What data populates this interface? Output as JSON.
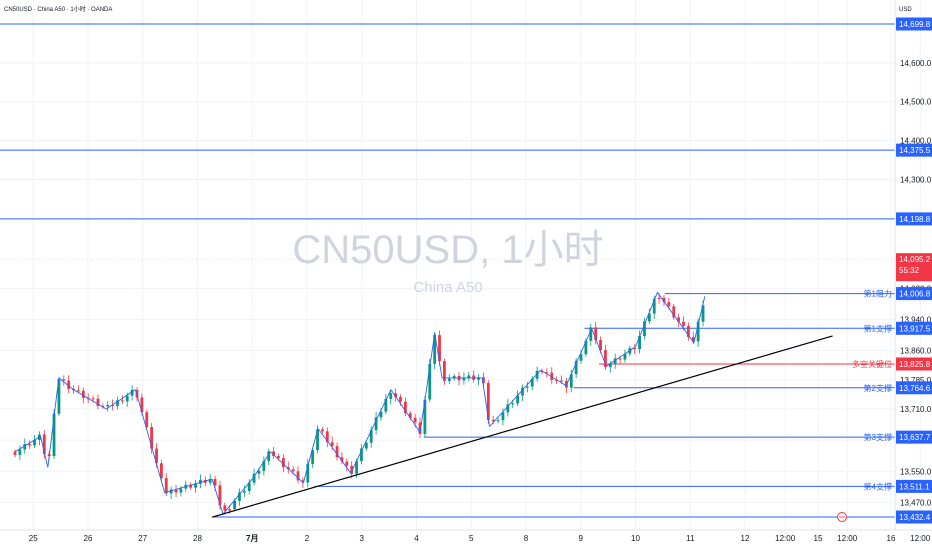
{
  "header": {
    "symbol_line": "CN50USD · China A50 · 1小时 · OANDA",
    "currency": "USD"
  },
  "watermark": {
    "title": "CN50USD, 1小时",
    "subtitle": "China A50"
  },
  "colors": {
    "up": "#089981",
    "down": "#f23645",
    "level": "#2962ff",
    "pivot": "#f23645",
    "trend": "#000000",
    "zigzag": "#2962ff",
    "grid": "#f0f3fa",
    "last_price_bg": "#f23645"
  },
  "chart_data": {
    "type": "candlestick",
    "title": "CN50USD, 1小时",
    "subtitle": "China A50",
    "ylim": [
      13420,
      14760
    ],
    "y_ticks": [
      {
        "value": 14600,
        "label": "14,600.0"
      },
      {
        "value": 14500,
        "label": "14,500.0"
      },
      {
        "value": 14400,
        "label": "14,400.0"
      },
      {
        "value": 14300,
        "label": "14,300.0"
      },
      {
        "value": 14020,
        "label": "14,020.0"
      },
      {
        "value": 13940,
        "label": "13,940.0"
      },
      {
        "value": 13860,
        "label": "13,860.0"
      },
      {
        "value": 13785,
        "label": "13,785.0"
      },
      {
        "value": 13710,
        "label": "13,710.0"
      },
      {
        "value": 13630,
        "label": "13,630.0"
      },
      {
        "value": 13550,
        "label": "13,550.0"
      },
      {
        "value": 13470,
        "label": "13,470.0"
      }
    ],
    "x_ticks": [
      {
        "t": 0.5,
        "label": "25",
        "bold": false
      },
      {
        "t": 2.0,
        "label": "26",
        "bold": false
      },
      {
        "t": 3.5,
        "label": "27",
        "bold": false
      },
      {
        "t": 5.0,
        "label": "28",
        "bold": false
      },
      {
        "t": 6.5,
        "label": "7月",
        "bold": true
      },
      {
        "t": 8.0,
        "label": "2",
        "bold": false
      },
      {
        "t": 9.5,
        "label": "3",
        "bold": false
      },
      {
        "t": 11.0,
        "label": "4",
        "bold": false
      },
      {
        "t": 12.5,
        "label": "5",
        "bold": false
      },
      {
        "t": 14.0,
        "label": "8",
        "bold": false
      },
      {
        "t": 15.5,
        "label": "9",
        "bold": false
      },
      {
        "t": 17.0,
        "label": "10",
        "bold": false
      },
      {
        "t": 18.5,
        "label": "11",
        "bold": false
      },
      {
        "t": 20.0,
        "label": "12",
        "bold": false
      },
      {
        "t": 21.1,
        "label": "12:00",
        "bold": false
      },
      {
        "t": 22.0,
        "label": "15",
        "bold": false
      },
      {
        "t": 22.8,
        "label": "12:00",
        "bold": false
      },
      {
        "t": 24.0,
        "label": "16",
        "bold": false
      },
      {
        "t": 24.8,
        "label": "12:00",
        "bold": false
      }
    ],
    "levels": [
      {
        "value": 14699.8,
        "label": "14,699.8",
        "name": "",
        "kind": "level"
      },
      {
        "value": 14375.5,
        "label": "14,375.5",
        "name": "",
        "kind": "level"
      },
      {
        "value": 14198.8,
        "label": "14,198.8",
        "name": "",
        "kind": "level"
      },
      {
        "value": 14006.8,
        "label": "14,006.8",
        "name": "第1阻力",
        "kind": "level"
      },
      {
        "value": 13917.5,
        "label": "13,917.5",
        "name": "第1支撑",
        "kind": "level"
      },
      {
        "value": 13825.8,
        "label": "13,825.8",
        "name": "多空关键位",
        "kind": "pivot"
      },
      {
        "value": 13764.6,
        "label": "13,764.6",
        "name": "第2支撑",
        "kind": "level"
      },
      {
        "value": 13637.7,
        "label": "13,637.7",
        "name": "第3支撑",
        "kind": "level"
      },
      {
        "value": 13511.1,
        "label": "13,511.1",
        "name": "第4支撑",
        "kind": "level"
      },
      {
        "value": 13432.4,
        "label": "13,432.4",
        "name": "",
        "kind": "level"
      }
    ],
    "level_starts": [
      {
        "value": 14006.8,
        "t": 17.8
      },
      {
        "value": 13917.5,
        "t": 15.6
      },
      {
        "value": 13825.8,
        "t": 16.0
      },
      {
        "value": 13764.6,
        "t": 15.3
      },
      {
        "value": 13637.7,
        "t": 11.2
      },
      {
        "value": 13511.1,
        "t": 8.2
      },
      {
        "value": 13432.4,
        "t": 5.4
      }
    ],
    "last_price": {
      "value": 14095.2,
      "label": "14,095.2",
      "countdown": "55:32"
    },
    "trendline": [
      {
        "t": 5.4,
        "v": 13432
      },
      {
        "t": 22.4,
        "v": 13898
      }
    ],
    "zigzag": [
      {
        "t": 0.0,
        "v": 13600
      },
      {
        "t": 0.7,
        "v": 13640
      },
      {
        "t": 0.9,
        "v": 13560
      },
      {
        "t": 1.2,
        "v": 13790
      },
      {
        "t": 1.6,
        "v": 13760
      },
      {
        "t": 2.5,
        "v": 13710
      },
      {
        "t": 3.3,
        "v": 13760
      },
      {
        "t": 4.1,
        "v": 13495
      },
      {
        "t": 5.4,
        "v": 13530
      },
      {
        "t": 5.7,
        "v": 13440
      },
      {
        "t": 6.5,
        "v": 13530
      },
      {
        "t": 7.0,
        "v": 13600
      },
      {
        "t": 7.9,
        "v": 13520
      },
      {
        "t": 8.3,
        "v": 13660
      },
      {
        "t": 8.7,
        "v": 13610
      },
      {
        "t": 9.2,
        "v": 13545
      },
      {
        "t": 10.3,
        "v": 13760
      },
      {
        "t": 11.1,
        "v": 13650
      },
      {
        "t": 11.5,
        "v": 13905
      },
      {
        "t": 11.7,
        "v": 13790
      },
      {
        "t": 12.8,
        "v": 13790
      },
      {
        "t": 13.0,
        "v": 13665
      },
      {
        "t": 14.4,
        "v": 13810
      },
      {
        "t": 15.1,
        "v": 13770
      },
      {
        "t": 15.8,
        "v": 13917
      },
      {
        "t": 16.2,
        "v": 13820
      },
      {
        "t": 17.0,
        "v": 13870
      },
      {
        "t": 17.6,
        "v": 14010
      },
      {
        "t": 18.6,
        "v": 13880
      },
      {
        "t": 18.9,
        "v": 14000
      }
    ],
    "candle_t_start": 0.0,
    "candle_t_end": 18.85,
    "candle_count": 142,
    "candle_dir_hint": [
      0,
      1,
      1,
      0,
      0,
      1,
      0,
      1,
      1,
      0,
      1,
      0,
      0,
      1,
      1,
      0,
      1,
      0,
      1,
      1
    ]
  }
}
